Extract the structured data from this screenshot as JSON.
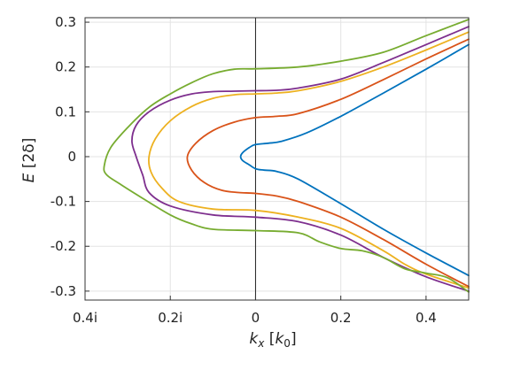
{
  "chart_data": {
    "type": "line",
    "xlabel": "k_x [k_0]",
    "ylabel": "E [2δ]",
    "xlabel_parts": {
      "base": "k",
      "sub": "x",
      "open": " [",
      "k": "k",
      "ksub": "0",
      "close": "]"
    },
    "ylabel_parts": {
      "base": "E",
      "unit": " [2δ]"
    },
    "xlim": [
      -0.4,
      0.5
    ],
    "ylim": [
      -0.32,
      0.31
    ],
    "x_note": "negative x values denote imaginary k_x (left half, labelled with i)",
    "xticks": [
      {
        "value": -0.4,
        "label": "0.4i"
      },
      {
        "value": -0.2,
        "label": "0.2i"
      },
      {
        "value": 0,
        "label": "0"
      },
      {
        "value": 0.2,
        "label": "0.2"
      },
      {
        "value": 0.4,
        "label": "0.4"
      }
    ],
    "yticks": [
      {
        "value": 0.3,
        "label": "0.3"
      },
      {
        "value": 0.2,
        "label": "0.2"
      },
      {
        "value": 0.1,
        "label": "0.1"
      },
      {
        "value": 0,
        "label": "0"
      },
      {
        "value": -0.1,
        "label": "-0.1"
      },
      {
        "value": -0.2,
        "label": "-0.2"
      },
      {
        "value": -0.3,
        "label": "-0.3"
      }
    ],
    "grid": true,
    "series": [
      {
        "color": "#0072BD",
        "points": [
          [
            0.5,
            0.25
          ],
          [
            0.4,
            0.195
          ],
          [
            0.3,
            0.142
          ],
          [
            0.2,
            0.09
          ],
          [
            0.12,
            0.053
          ],
          [
            0.06,
            0.034
          ],
          [
            0.03,
            0.03
          ],
          [
            0.0,
            0.027
          ],
          [
            -0.015,
            0.02
          ],
          [
            -0.03,
            0.009
          ],
          [
            -0.035,
            0.0
          ],
          [
            -0.03,
            -0.009
          ],
          [
            -0.015,
            -0.018
          ],
          [
            0.0,
            -0.027
          ],
          [
            0.02,
            -0.03
          ],
          [
            0.05,
            -0.033
          ],
          [
            0.1,
            -0.05
          ],
          [
            0.2,
            -0.105
          ],
          [
            0.3,
            -0.162
          ],
          [
            0.4,
            -0.215
          ],
          [
            0.5,
            -0.265
          ]
        ]
      },
      {
        "color": "#D95319",
        "points": [
          [
            0.5,
            0.262
          ],
          [
            0.4,
            0.218
          ],
          [
            0.3,
            0.172
          ],
          [
            0.2,
            0.128
          ],
          [
            0.1,
            0.096
          ],
          [
            0.05,
            0.09
          ],
          [
            0.0,
            0.087
          ],
          [
            -0.05,
            0.077
          ],
          [
            -0.1,
            0.058
          ],
          [
            -0.14,
            0.03
          ],
          [
            -0.16,
            0.0
          ],
          [
            -0.15,
            -0.03
          ],
          [
            -0.12,
            -0.058
          ],
          [
            -0.08,
            -0.075
          ],
          [
            -0.04,
            -0.08
          ],
          [
            0.0,
            -0.082
          ],
          [
            0.05,
            -0.088
          ],
          [
            0.1,
            -0.1
          ],
          [
            0.2,
            -0.135
          ],
          [
            0.3,
            -0.185
          ],
          [
            0.4,
            -0.24
          ],
          [
            0.5,
            -0.29
          ]
        ]
      },
      {
        "color": "#EDB120",
        "points": [
          [
            0.5,
            0.278
          ],
          [
            0.4,
            0.238
          ],
          [
            0.3,
            0.2
          ],
          [
            0.2,
            0.168
          ],
          [
            0.1,
            0.147
          ],
          [
            0.05,
            0.142
          ],
          [
            0.0,
            0.14
          ],
          [
            -0.05,
            0.138
          ],
          [
            -0.1,
            0.13
          ],
          [
            -0.15,
            0.112
          ],
          [
            -0.2,
            0.08
          ],
          [
            -0.235,
            0.04
          ],
          [
            -0.25,
            0.0
          ],
          [
            -0.245,
            -0.035
          ],
          [
            -0.22,
            -0.07
          ],
          [
            -0.18,
            -0.1
          ],
          [
            -0.1,
            -0.117
          ],
          [
            0.0,
            -0.12
          ],
          [
            0.1,
            -0.135
          ],
          [
            0.2,
            -0.16
          ],
          [
            0.3,
            -0.21
          ],
          [
            0.35,
            -0.24
          ],
          [
            0.4,
            -0.262
          ],
          [
            0.5,
            -0.293
          ]
        ]
      },
      {
        "color": "#7E2F8E",
        "points": [
          [
            0.5,
            0.29
          ],
          [
            0.4,
            0.25
          ],
          [
            0.3,
            0.21
          ],
          [
            0.2,
            0.173
          ],
          [
            0.1,
            0.153
          ],
          [
            0.05,
            0.148
          ],
          [
            0.0,
            0.147
          ],
          [
            -0.05,
            0.146
          ],
          [
            -0.1,
            0.145
          ],
          [
            -0.15,
            0.14
          ],
          [
            -0.2,
            0.126
          ],
          [
            -0.25,
            0.1
          ],
          [
            -0.28,
            0.07
          ],
          [
            -0.29,
            0.035
          ],
          [
            -0.28,
            0.0
          ],
          [
            -0.265,
            -0.04
          ],
          [
            -0.25,
            -0.08
          ],
          [
            -0.2,
            -0.11
          ],
          [
            -0.1,
            -0.13
          ],
          [
            0.0,
            -0.135
          ],
          [
            0.1,
            -0.145
          ],
          [
            0.2,
            -0.175
          ],
          [
            0.3,
            -0.225
          ],
          [
            0.4,
            -0.268
          ],
          [
            0.5,
            -0.3
          ]
        ]
      },
      {
        "color": "#77AC30",
        "points": [
          [
            0.5,
            0.306
          ],
          [
            0.4,
            0.27
          ],
          [
            0.3,
            0.233
          ],
          [
            0.2,
            0.213
          ],
          [
            0.1,
            0.2
          ],
          [
            0.0,
            0.196
          ],
          [
            -0.05,
            0.195
          ],
          [
            -0.1,
            0.185
          ],
          [
            -0.15,
            0.165
          ],
          [
            -0.2,
            0.14
          ],
          [
            -0.25,
            0.11
          ],
          [
            -0.3,
            0.065
          ],
          [
            -0.34,
            0.02
          ],
          [
            -0.355,
            -0.02
          ],
          [
            -0.35,
            -0.04
          ],
          [
            -0.32,
            -0.06
          ],
          [
            -0.27,
            -0.09
          ],
          [
            -0.2,
            -0.13
          ],
          [
            -0.15,
            -0.15
          ],
          [
            -0.1,
            -0.162
          ],
          [
            0.0,
            -0.165
          ],
          [
            0.1,
            -0.17
          ],
          [
            0.15,
            -0.19
          ],
          [
            0.2,
            -0.205
          ],
          [
            0.25,
            -0.21
          ],
          [
            0.3,
            -0.225
          ],
          [
            0.35,
            -0.25
          ],
          [
            0.4,
            -0.26
          ],
          [
            0.45,
            -0.27
          ],
          [
            0.5,
            -0.302
          ]
        ]
      }
    ]
  }
}
